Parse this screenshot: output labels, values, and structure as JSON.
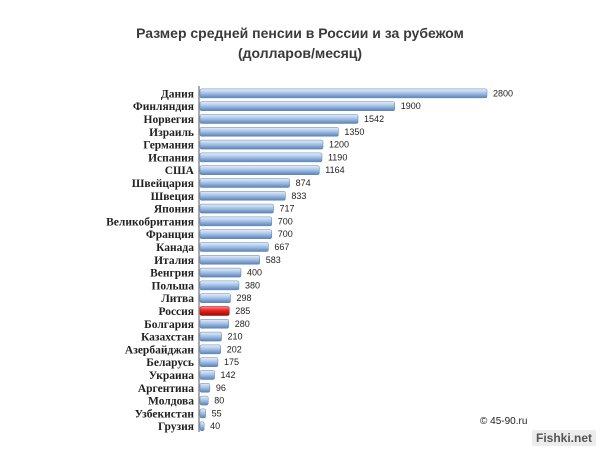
{
  "chart_data": {
    "type": "bar",
    "orientation": "horizontal",
    "title": "Размер средней пенсии в России и за рубежом",
    "subtitle": "(долларов/месяц)",
    "categories": [
      "Дания",
      "Финляндия",
      "Норвегия",
      "Израиль",
      "Германия",
      "Испания",
      "США",
      "Швейцария",
      "Швеция",
      "Япония",
      "Великобритания",
      "Франция",
      "Канада",
      "Италия",
      "Венгрия",
      "Польша",
      "Литва",
      "Россия",
      "Болгария",
      "Казахстан",
      "Азербайджан",
      "Беларусь",
      "Украина",
      "Аргентина",
      "Молдова",
      "Узбекистан",
      "Грузия"
    ],
    "values": [
      2800,
      1900,
      1542,
      1350,
      1200,
      1190,
      1164,
      874,
      833,
      717,
      700,
      700,
      667,
      583,
      400,
      380,
      298,
      285,
      280,
      210,
      202,
      175,
      142,
      96,
      80,
      55,
      40
    ],
    "highlight_category": "Россия",
    "colors": {
      "bar": "#a9c4e6",
      "bar_dark": "#5a82b8",
      "highlight": "#e8231f",
      "highlight_dark": "#9a0a08"
    },
    "xlim": [
      0,
      2800
    ],
    "grid": false,
    "legend": "none"
  },
  "copyright": "© 45-90.ru",
  "watermark": "Fishki.net"
}
